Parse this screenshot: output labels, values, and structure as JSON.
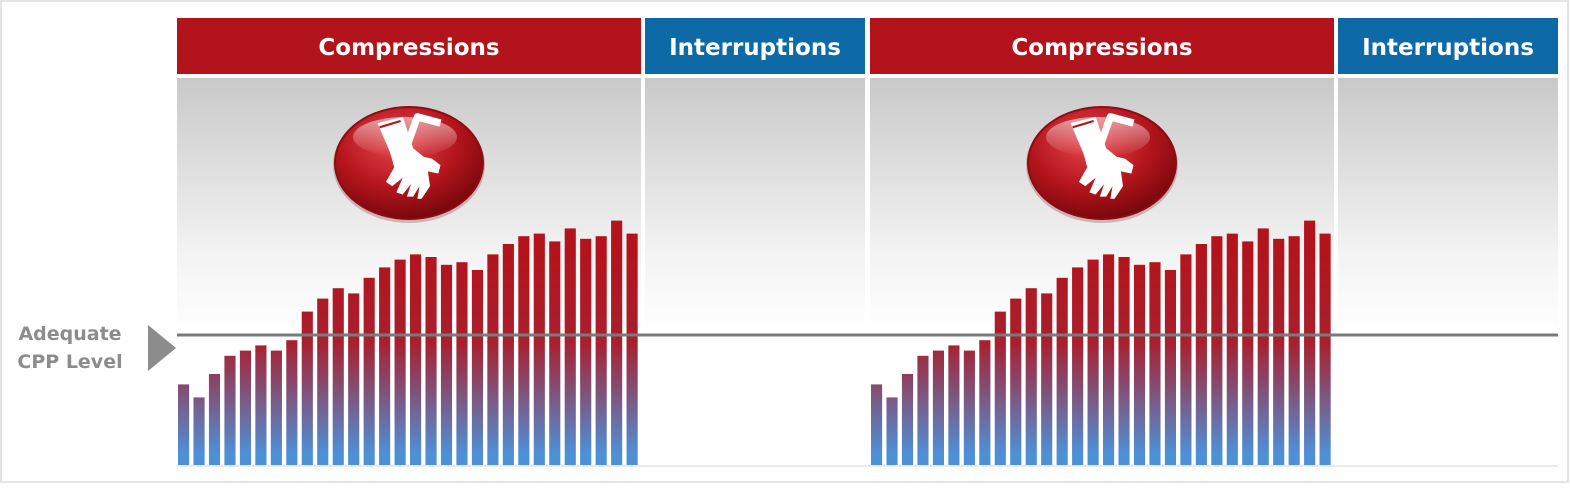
{
  "colors": {
    "compressions_header": "#b3141c",
    "interruptions_header": "#0d6aa6",
    "bar_top": "#b3141c",
    "bar_bottom": "#4e90d6",
    "threshold_line": "#7a7a7a",
    "label_text": "#8c8c8c"
  },
  "threshold_label": {
    "line1": "Adequate",
    "line2": "CPP Level"
  },
  "icon": "cpr-hands-icon",
  "chart_data": {
    "type": "bar",
    "ylim": [
      0,
      100
    ],
    "threshold": 50,
    "threshold_label": "Adequate CPP Level",
    "segments": [
      {
        "label": "Compressions",
        "kind": "compressions",
        "icon": "cpr-hands-icon",
        "values": [
          31,
          26,
          35,
          42,
          44,
          46,
          44,
          48,
          59,
          64,
          68,
          66,
          72,
          76,
          79,
          81,
          80,
          77,
          78,
          75,
          81,
          85,
          88,
          89,
          86,
          91,
          87,
          88,
          94,
          89
        ]
      },
      {
        "label": "Interruptions",
        "kind": "interruptions",
        "values": []
      },
      {
        "label": "Compressions",
        "kind": "compressions",
        "icon": "cpr-hands-icon",
        "values": [
          31,
          26,
          35,
          42,
          44,
          46,
          44,
          48,
          59,
          64,
          68,
          66,
          72,
          76,
          79,
          81,
          80,
          77,
          78,
          75,
          81,
          85,
          88,
          89,
          86,
          91,
          87,
          88,
          94,
          89
        ]
      },
      {
        "label": "Interruptions",
        "kind": "interruptions",
        "values": []
      }
    ]
  }
}
